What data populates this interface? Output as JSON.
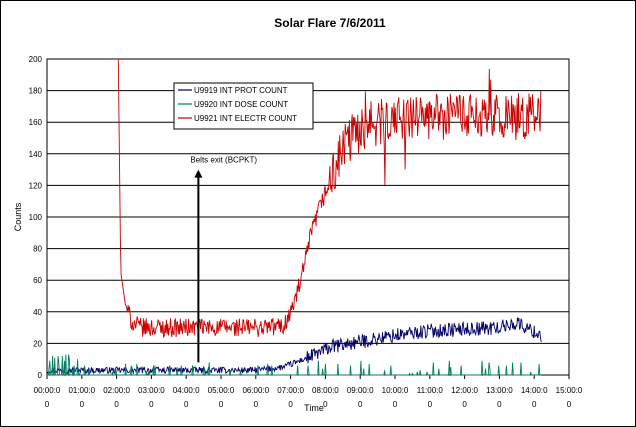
{
  "chart_data": {
    "type": "line",
    "title": "Solar Flare 7/6/2011",
    "xlabel": "Time",
    "ylabel": "Counts",
    "ylim": [
      0,
      200
    ],
    "xlim": [
      0,
      15
    ],
    "y_ticks": [
      0,
      20,
      40,
      60,
      80,
      100,
      120,
      140,
      160,
      180,
      200
    ],
    "x_tick_labels": [
      [
        "00:00:0",
        "0"
      ],
      [
        "01:00:0",
        "0"
      ],
      [
        "02:00:0",
        "0"
      ],
      [
        "03:00:0",
        "0"
      ],
      [
        "04:00:0",
        "0"
      ],
      [
        "05:00:0",
        "0"
      ],
      [
        "06:00:0",
        "0"
      ],
      [
        "07:00:0",
        "0"
      ],
      [
        "08:00:0",
        "0"
      ],
      [
        "09:00:0",
        "0"
      ],
      [
        "10:00:0",
        "0"
      ],
      [
        "11:00:0",
        "0"
      ],
      [
        "12:00:0",
        "0"
      ],
      [
        "13:00:0",
        "0"
      ],
      [
        "14:00:0",
        "0"
      ],
      [
        "15:00:0",
        "0"
      ]
    ],
    "grid": "horizontal",
    "legend_position": "top-left",
    "annotation": {
      "text": "Belts exit (BCPKT)",
      "x_hours": 4.35,
      "y_range": [
        8,
        130
      ]
    },
    "series": [
      {
        "name": "U9919 INT PROT COUNT",
        "color": "#000066",
        "x_hours": [
          0,
          1,
          2,
          3,
          4,
          5,
          6,
          6.8,
          7.5,
          8.2,
          9,
          10,
          11,
          12,
          13,
          13.5,
          14.2
        ],
        "values": [
          3,
          3,
          3,
          3,
          3,
          3,
          3,
          5,
          11,
          18,
          21,
          25,
          28,
          29,
          30,
          33,
          25
        ]
      },
      {
        "name": "U9920 INT DOSE COUNT",
        "color": "#008060",
        "x_hours": [
          0,
          1,
          2,
          3,
          4,
          5,
          6,
          7,
          8,
          9,
          10,
          11,
          12,
          13,
          14.2
        ],
        "values": [
          3,
          1,
          0,
          0,
          0,
          0,
          0,
          0,
          1,
          1,
          1,
          1,
          1,
          1,
          0
        ]
      },
      {
        "name": "U9921 INT ELECTR COUNT",
        "color": "#cc0000",
        "x_hours": [
          2.05,
          2.12,
          2.25,
          2.45,
          2.7,
          3,
          4,
          5,
          6,
          6.8,
          7.05,
          7.3,
          7.6,
          7.9,
          8.2,
          8.5,
          8.8,
          9.2,
          10,
          11,
          12,
          13,
          14.2
        ],
        "values": [
          200,
          65,
          45,
          33,
          30,
          30,
          30,
          30,
          30,
          31,
          42,
          60,
          90,
          110,
          125,
          143,
          152,
          158,
          162,
          163,
          164,
          163,
          165
        ]
      }
    ]
  }
}
